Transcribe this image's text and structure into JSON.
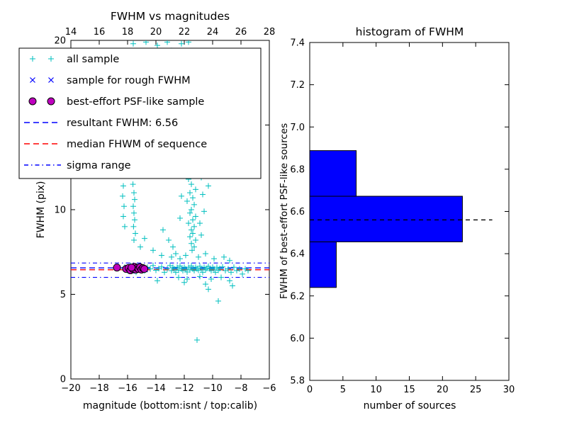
{
  "figure": {
    "background": "#ffffff"
  },
  "legend": {
    "entries": [
      {
        "label": "all sample",
        "type": "markers",
        "marker": "plus",
        "color": "#00bfbf"
      },
      {
        "label": "sample for rough FWHM",
        "type": "markers",
        "marker": "x",
        "color": "#0000ff"
      },
      {
        "label": "best-effort PSF-like sample",
        "type": "markers",
        "marker": "circle",
        "color": "#bf00bf"
      },
      {
        "label": "resultant FWHM: 6.56",
        "type": "line",
        "dash": "8 5",
        "color": "#0000ff"
      },
      {
        "label": "median FHWM of sequence",
        "type": "line",
        "dash": "8 5",
        "color": "#ff0000"
      },
      {
        "label": "sigma range",
        "type": "line",
        "dash": "6 4 1.5 4",
        "color": "#0000ff"
      }
    ]
  },
  "chart_data": [
    {
      "type": "scatter",
      "title": "FWHM vs magnitudes",
      "xlabel": "magnitude (bottom:isnt / top:calib)",
      "ylabel": "FWHM (pix)",
      "xlim": [
        -20,
        -6
      ],
      "ylim": [
        0,
        20
      ],
      "top_xlim": [
        14,
        28
      ],
      "x_ticks": [
        -20,
        -18,
        -16,
        -14,
        -12,
        -10,
        -8,
        -6
      ],
      "top_x_ticks": [
        14,
        16,
        18,
        20,
        22,
        24,
        26,
        28
      ],
      "y_ticks": [
        0,
        5,
        10,
        15,
        20
      ],
      "hlines": [
        {
          "name": "sigma low",
          "value": 6.0,
          "color": "#0000ff",
          "dash": "6 4 1.5 4",
          "width": 1.1
        },
        {
          "name": "sigma high",
          "value": 6.85,
          "color": "#0000ff",
          "dash": "6 4 1.5 4",
          "width": 1.1
        },
        {
          "name": "resultant FWHM",
          "value": 6.56,
          "color": "#0000ff",
          "dash": "8 5",
          "width": 1.4
        },
        {
          "name": "median FHWM of sequence",
          "value": 6.45,
          "color": "#ff0000",
          "dash": "8 5",
          "width": 1.4
        }
      ],
      "series": [
        {
          "name": "all sample",
          "marker": "plus",
          "color": "#00bfbf",
          "points": [
            [
              -15.6,
              19.8
            ],
            [
              -15.5,
              19.0
            ],
            [
              -15.65,
              18.2
            ],
            [
              -15.55,
              17.5
            ],
            [
              -15.6,
              16.8
            ],
            [
              -15.5,
              16.1
            ],
            [
              -15.62,
              15.4
            ],
            [
              -15.55,
              14.8
            ],
            [
              -15.5,
              14.2
            ],
            [
              -15.6,
              13.6
            ],
            [
              -15.52,
              13.0
            ],
            [
              -15.58,
              12.5
            ],
            [
              -15.5,
              12.0
            ],
            [
              -15.62,
              11.5
            ],
            [
              -15.55,
              11.0
            ],
            [
              -15.5,
              10.6
            ],
            [
              -15.6,
              10.2
            ],
            [
              -15.55,
              9.8
            ],
            [
              -15.5,
              9.4
            ],
            [
              -15.58,
              9.0
            ],
            [
              -15.45,
              8.6
            ],
            [
              -15.55,
              8.2
            ],
            [
              -16.3,
              11.4
            ],
            [
              -16.35,
              10.8
            ],
            [
              -16.25,
              10.2
            ],
            [
              -16.3,
              9.6
            ],
            [
              -16.2,
              9.0
            ],
            [
              -14.7,
              19.9
            ],
            [
              -13.9,
              19.7
            ],
            [
              -13.2,
              19.9
            ],
            [
              -12.9,
              19.4
            ],
            [
              -14.1,
              18.9
            ],
            [
              -12.2,
              19.8
            ],
            [
              -11.7,
              19.9
            ],
            [
              -12.0,
              18.5
            ],
            [
              -11.9,
              14.3
            ],
            [
              -11.7,
              13.8
            ],
            [
              -11.5,
              13.4
            ],
            [
              -11.8,
              13.0
            ],
            [
              -11.4,
              12.7
            ],
            [
              -11.6,
              12.4
            ],
            [
              -11.3,
              12.1
            ],
            [
              -11.7,
              11.8
            ],
            [
              -11.5,
              11.5
            ],
            [
              -11.2,
              11.2
            ],
            [
              -11.6,
              11.0
            ],
            [
              -11.4,
              10.7
            ],
            [
              -11.8,
              10.5
            ],
            [
              -11.3,
              10.3
            ],
            [
              -11.5,
              10.0
            ],
            [
              -11.6,
              9.8
            ],
            [
              -11.2,
              9.6
            ],
            [
              -11.4,
              9.4
            ],
            [
              -11.7,
              9.2
            ],
            [
              -11.3,
              9.0
            ],
            [
              -11.5,
              8.8
            ],
            [
              -11.4,
              8.6
            ],
            [
              -11.6,
              8.4
            ],
            [
              -11.2,
              8.2
            ],
            [
              -11.5,
              8.0
            ],
            [
              -11.3,
              7.8
            ],
            [
              -11.45,
              7.6
            ],
            [
              -10.9,
              12.9
            ],
            [
              -10.8,
              11.9
            ],
            [
              -10.7,
              10.9
            ],
            [
              -10.6,
              9.9
            ],
            [
              -10.9,
              9.2
            ],
            [
              -10.8,
              8.5
            ],
            [
              -12.1,
              12.2
            ],
            [
              -12.2,
              10.8
            ],
            [
              -12.3,
              9.5
            ],
            [
              -10.4,
              12.6
            ],
            [
              -10.3,
              11.4
            ],
            [
              -12.4,
              13.3
            ],
            [
              -12.0,
              13.9
            ],
            [
              -13.5,
              8.8
            ],
            [
              -13.1,
              8.2
            ],
            [
              -12.8,
              7.8
            ],
            [
              -14.2,
              7.6
            ],
            [
              -13.6,
              7.3
            ],
            [
              -12.6,
              7.4
            ],
            [
              -14.8,
              8.3
            ],
            [
              -15.1,
              7.8
            ],
            [
              -12.9,
              7.2
            ],
            [
              -12.3,
              7.1
            ],
            [
              -11.9,
              7.3
            ],
            [
              -11.0,
              7.2
            ],
            [
              -10.5,
              7.4
            ],
            [
              -9.9,
              7.1
            ],
            [
              -9.2,
              7.2
            ],
            [
              -8.8,
              7.0
            ],
            [
              -16.2,
              6.6
            ],
            [
              -16.0,
              6.4
            ],
            [
              -15.8,
              6.7
            ],
            [
              -15.4,
              6.3
            ],
            [
              -15.2,
              6.62
            ],
            [
              -15.0,
              6.48
            ],
            [
              -14.8,
              6.38
            ],
            [
              -14.6,
              6.6
            ],
            [
              -14.4,
              6.5
            ],
            [
              -14.2,
              6.7
            ],
            [
              -14.0,
              6.42
            ],
            [
              -13.8,
              6.52
            ],
            [
              -13.6,
              6.62
            ],
            [
              -13.4,
              6.3
            ],
            [
              -13.2,
              6.5
            ],
            [
              -13.0,
              6.7
            ],
            [
              -12.9,
              6.4
            ],
            [
              -12.8,
              6.6
            ],
            [
              -12.7,
              6.5
            ],
            [
              -12.6,
              6.3
            ],
            [
              -12.5,
              6.6
            ],
            [
              -12.4,
              6.42
            ],
            [
              -12.3,
              6.68
            ],
            [
              -12.2,
              6.5
            ],
            [
              -12.1,
              6.4
            ],
            [
              -12.0,
              6.6
            ],
            [
              -11.9,
              6.5
            ],
            [
              -11.8,
              6.32
            ],
            [
              -11.7,
              6.6
            ],
            [
              -11.6,
              6.44
            ],
            [
              -11.5,
              6.68
            ],
            [
              -11.4,
              6.5
            ],
            [
              -11.3,
              6.4
            ],
            [
              -11.2,
              6.6
            ],
            [
              -11.1,
              6.5
            ],
            [
              -11.0,
              6.42
            ],
            [
              -10.9,
              6.66
            ],
            [
              -10.8,
              6.5
            ],
            [
              -10.7,
              6.3
            ],
            [
              -10.6,
              6.6
            ],
            [
              -10.5,
              6.44
            ],
            [
              -10.4,
              6.52
            ],
            [
              -10.3,
              6.66
            ],
            [
              -10.2,
              6.5
            ],
            [
              -10.1,
              6.4
            ],
            [
              -10.0,
              6.6
            ],
            [
              -9.9,
              6.5
            ],
            [
              -9.8,
              6.3
            ],
            [
              -9.7,
              6.6
            ],
            [
              -9.6,
              6.42
            ],
            [
              -9.5,
              6.52
            ],
            [
              -9.3,
              6.62
            ],
            [
              -9.1,
              6.4
            ],
            [
              -8.9,
              6.5
            ],
            [
              -8.7,
              6.3
            ],
            [
              -8.5,
              6.6
            ],
            [
              -8.3,
              6.4
            ],
            [
              -8.1,
              6.5
            ],
            [
              -7.9,
              6.2
            ],
            [
              -7.7,
              6.5
            ],
            [
              -7.5,
              6.4
            ],
            [
              -12.4,
              6.0
            ],
            [
              -11.8,
              5.9
            ],
            [
              -10.9,
              6.05
            ],
            [
              -10.1,
              5.9
            ],
            [
              -9.4,
              6.0
            ],
            [
              -8.8,
              5.8
            ],
            [
              -12.0,
              5.7
            ],
            [
              -10.5,
              5.6
            ],
            [
              -13.9,
              5.8
            ],
            [
              -9.6,
              4.6
            ],
            [
              -11.1,
              2.3
            ],
            [
              -10.3,
              5.3
            ],
            [
              -8.6,
              5.5
            ]
          ]
        },
        {
          "name": "sample for rough FWHM",
          "marker": "x",
          "color": "#0000ff",
          "points": [
            [
              -15.9,
              6.5
            ],
            [
              -15.65,
              6.45
            ],
            [
              -15.4,
              6.56
            ],
            [
              -15.15,
              6.42
            ],
            [
              -14.9,
              6.52
            ],
            [
              -15.5,
              6.62
            ],
            [
              -15.25,
              6.66
            ],
            [
              -14.75,
              6.46
            ],
            [
              -15.05,
              6.58
            ],
            [
              -15.7,
              6.38
            ]
          ]
        },
        {
          "name": "best-effort PSF-like sample",
          "marker": "circle",
          "color": "#bf00bf",
          "points": [
            [
              -16.75,
              6.58
            ],
            [
              -16.1,
              6.5
            ],
            [
              -15.92,
              6.56
            ],
            [
              -15.8,
              6.42
            ],
            [
              -15.62,
              6.5
            ],
            [
              -15.52,
              6.62
            ],
            [
              -15.42,
              6.46
            ],
            [
              -15.32,
              6.56
            ],
            [
              -15.22,
              6.5
            ],
            [
              -15.12,
              6.6
            ],
            [
              -15.02,
              6.46
            ],
            [
              -14.92,
              6.55
            ],
            [
              -14.82,
              6.5
            ],
            [
              -15.72,
              6.58
            ]
          ]
        }
      ]
    },
    {
      "type": "bar",
      "orientation": "horizontal",
      "title": "histogram of FWHM",
      "xlabel": "number of sources",
      "ylabel": "FWHM of best-effort PSF-like sources",
      "xlim": [
        0,
        30
      ],
      "ylim": [
        5.8,
        7.4
      ],
      "x_ticks": [
        0,
        5,
        10,
        15,
        20,
        25,
        30
      ],
      "y_tick_labels": [
        "5.8",
        "6.0",
        "6.2",
        "6.4",
        "6.6",
        "6.8",
        "7.0",
        "7.2",
        "7.4"
      ],
      "bars": [
        {
          "from": 6.24,
          "to": 6.456,
          "count": 4
        },
        {
          "from": 6.456,
          "to": 6.672,
          "count": 23
        },
        {
          "from": 6.672,
          "to": 6.888,
          "count": 7
        }
      ],
      "bar_color": "#0000ff",
      "bar_edge_color": "#000000",
      "mean_line": {
        "value": 6.56,
        "x_end": 27.5,
        "color": "#000000",
        "dash": "6 5"
      }
    }
  ]
}
